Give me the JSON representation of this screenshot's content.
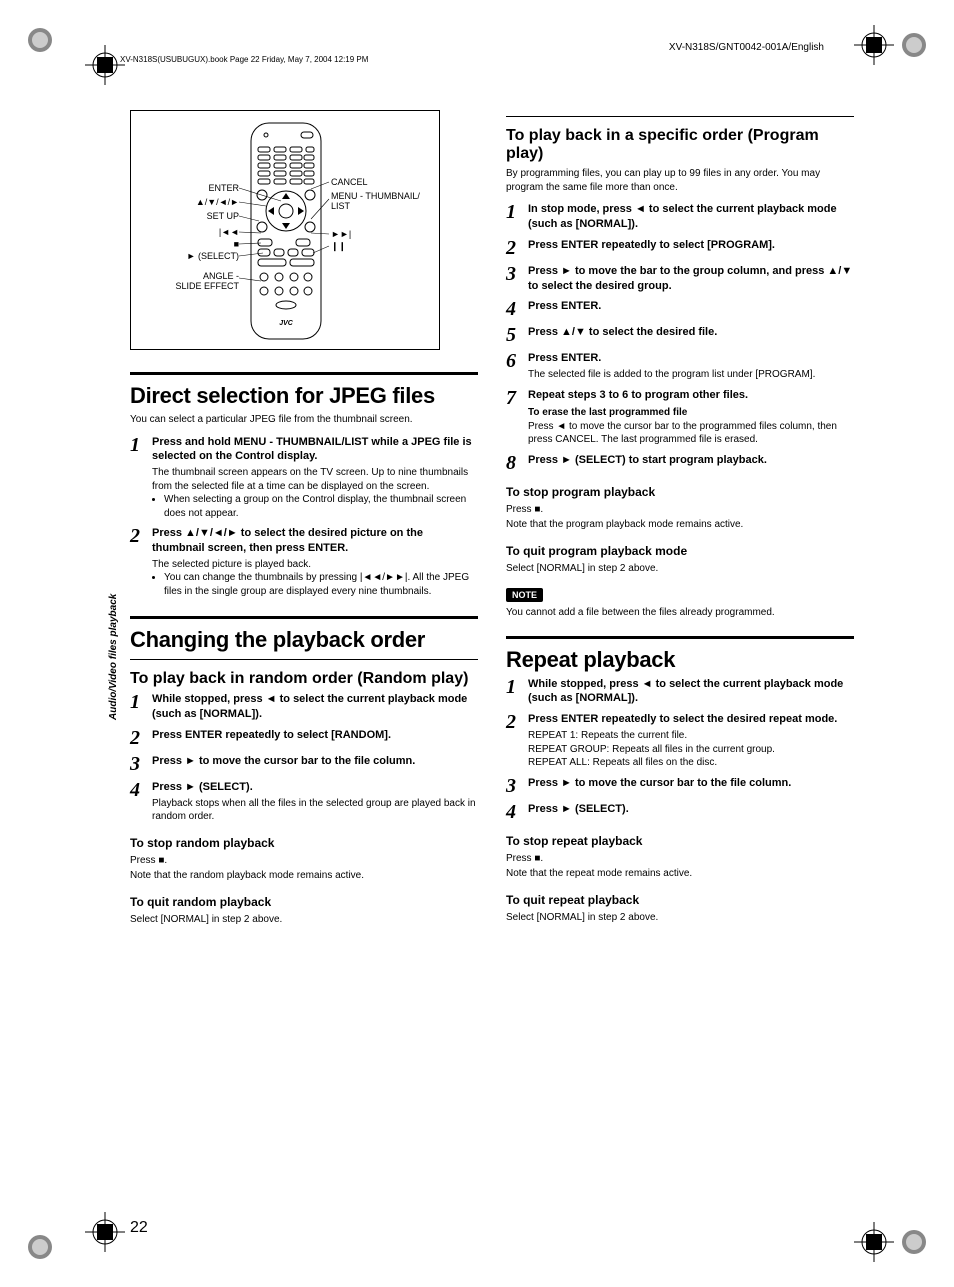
{
  "meta": {
    "header_right": "XV-N318S/GNT0042-001A/English",
    "book_line": "XV-N318S(USUBUGUX).book  Page 22  Friday, May 7, 2004  12:19 PM",
    "page_number": "22",
    "side_label": "Audio/Video files playback"
  },
  "remote": {
    "labels_left": {
      "enter": "ENTER",
      "arrows": "▲/▼/◄/►",
      "setup": "SET UP",
      "prev": "|◄◄",
      "stop": "■",
      "select": "► (SELECT)",
      "angle": "ANGLE -\nSLIDE EFFECT"
    },
    "labels_right": {
      "cancel": "CANCEL",
      "menu": "MENU - THUMBNAIL/\nLIST",
      "next": "►►|",
      "pause": "❙❙"
    }
  },
  "left": {
    "sec1": {
      "title": "Direct selection for JPEG files",
      "intro": "You can select a particular JPEG file from the thumbnail screen.",
      "steps": [
        {
          "n": "1",
          "bold": "Press and hold MENU - THUMBNAIL/LIST while a JPEG file is selected on the Control display.",
          "plain": "The thumbnail screen appears on the TV screen. Up to nine thumbnails from the selected file at a time can be displayed on the screen.",
          "bullets": [
            "When selecting a group on the Control display, the thumbnail screen does not appear."
          ]
        },
        {
          "n": "2",
          "bold": "Press ▲/▼/◄/► to select the desired picture on the thumbnail screen, then press ENTER.",
          "plain": "The selected picture is played back.",
          "bullets": [
            "You can change the thumbnails by pressing |◄◄/►►|. All the JPEG files in the single group are displayed every nine thumbnails."
          ]
        }
      ]
    },
    "sec2": {
      "title": "Changing the playback order",
      "sub1": {
        "title": "To play back in random order (Random play)",
        "steps": [
          {
            "n": "1",
            "bold": "While stopped, press ◄ to select the current playback mode (such as [NORMAL])."
          },
          {
            "n": "2",
            "bold": "Press ENTER repeatedly to select [RANDOM]."
          },
          {
            "n": "3",
            "bold": "Press ► to move the cursor bar to the file column."
          },
          {
            "n": "4",
            "bold": "Press ► (SELECT).",
            "plain": "Playback stops when all the files in the selected group are played back in random order."
          }
        ],
        "stop": {
          "title": "To stop random playback",
          "body1": "Press ■.",
          "body2": "Note that the random playback mode remains active."
        },
        "quit": {
          "title": "To quit random playback",
          "body": "Select [NORMAL] in step 2 above."
        }
      }
    }
  },
  "right": {
    "sub_program": {
      "title": "To play back in a specific order (Program play)",
      "intro": "By programming files, you can play up to 99 files in any order. You may program the same file more than once.",
      "steps": [
        {
          "n": "1",
          "bold": "In stop mode, press ◄ to select the current playback mode (such as [NORMAL])."
        },
        {
          "n": "2",
          "bold": "Press ENTER repeatedly to select [PROGRAM]."
        },
        {
          "n": "3",
          "bold": "Press ► to move the bar to the group column, and press ▲/▼ to select the desired group."
        },
        {
          "n": "4",
          "bold": "Press ENTER."
        },
        {
          "n": "5",
          "bold": "Press ▲/▼ to select the desired file."
        },
        {
          "n": "6",
          "bold": "Press ENTER.",
          "plain": "The selected file is added to the program list under [PROGRAM]."
        },
        {
          "n": "7",
          "bold": "Repeat steps 3 to 6 to program other files.",
          "sub_bold": "To erase the last programmed file",
          "plain": "Press ◄ to move the cursor bar to the programmed files column, then press CANCEL. The last programmed file is erased."
        },
        {
          "n": "8",
          "bold": "Press ► (SELECT) to start program playback."
        }
      ],
      "stop": {
        "title": "To stop program playback",
        "body1": "Press ■.",
        "body2": "Note that the program playback mode remains active."
      },
      "quit": {
        "title": "To quit program playback mode",
        "body": "Select [NORMAL] in step 2 above."
      },
      "note": {
        "label": "NOTE",
        "body": "You cannot add a file between the files already programmed."
      }
    },
    "sec_repeat": {
      "title": "Repeat playback",
      "steps": [
        {
          "n": "1",
          "bold": "While stopped, press ◄ to select the current playback mode (such as [NORMAL])."
        },
        {
          "n": "2",
          "bold": "Press ENTER repeatedly to select the desired repeat mode.",
          "plain": "REPEAT 1: Repeats the current file.\nREPEAT GROUP: Repeats all files in the current group.\nREPEAT ALL: Repeats all files on the disc."
        },
        {
          "n": "3",
          "bold": "Press ► to move the cursor bar to the file column."
        },
        {
          "n": "4",
          "bold": "Press ► (SELECT)."
        }
      ],
      "stop": {
        "title": "To stop repeat playback",
        "body1": "Press ■.",
        "body2": "Note that the repeat mode remains active."
      },
      "quit": {
        "title": "To quit repeat playback",
        "body": "Select [NORMAL] in step 2 above."
      }
    }
  }
}
